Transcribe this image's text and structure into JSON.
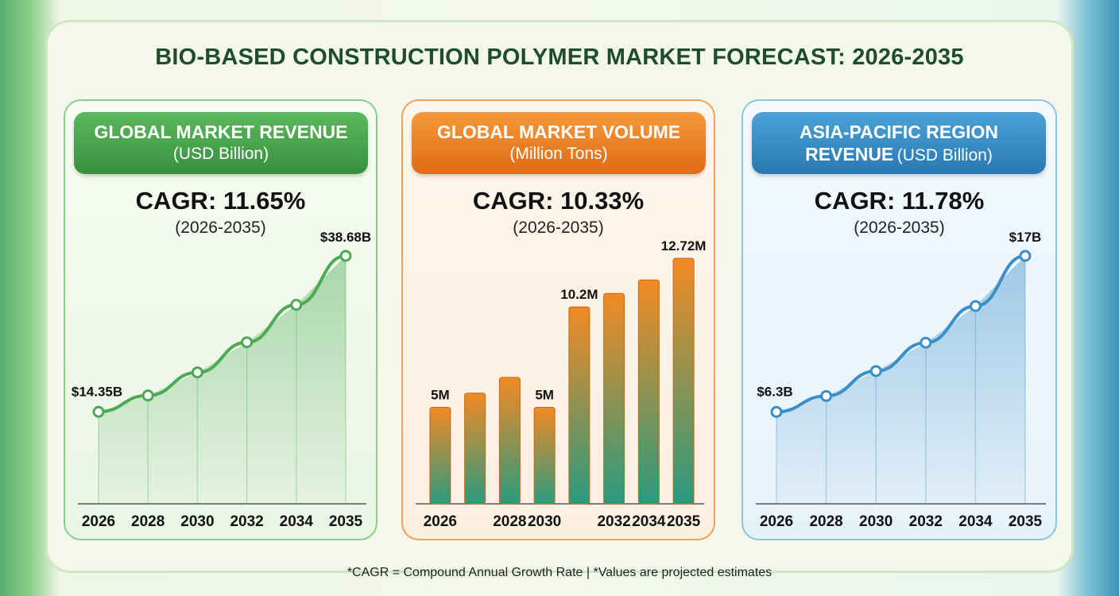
{
  "title": "BIO-BASED CONSTRUCTION POLYMER MARKET FORECAST: 2026-2035",
  "footnote": "*CAGR = Compound Annual Growth Rate | *Values are projected estimates",
  "chart_data": [
    {
      "type": "line",
      "title": "GLOBAL MARKET REVENUE",
      "unit": "(USD Billion)",
      "cagr": "CAGR: 11.65%",
      "period": "(2026-2035)",
      "categories": [
        "2026",
        "2028",
        "2030",
        "2032",
        "2034",
        "2035"
      ],
      "values": [
        14.35,
        16.9,
        20.5,
        25.2,
        31.05,
        38.68
      ],
      "value_labels": [
        "$14.35B",
        null,
        null,
        null,
        null,
        "$38.68B"
      ],
      "color": "#4caa55"
    },
    {
      "type": "bar",
      "title": "GLOBAL MARKET VOLUME",
      "unit": "(Million Tons)",
      "cagr": "CAGR: 10.33%",
      "period": "(2026-2035)",
      "categories": [
        "2026",
        null,
        "2028",
        "2030",
        null,
        "2032",
        "2034",
        "2035"
      ],
      "values": [
        5,
        5.73,
        6.55,
        5,
        10.2,
        10.9,
        11.6,
        12.72
      ],
      "value_labels": [
        "5M",
        null,
        null,
        "5M",
        "10.2M",
        null,
        null,
        "12.72M"
      ],
      "color": "#f28a24"
    },
    {
      "type": "line",
      "title": "ASIA-PACIFIC REGION REVENUE",
      "unit": "(USD Billion)",
      "cagr": "CAGR: 11.78%",
      "period": "(2026-2035)",
      "categories": [
        "2026",
        "2028",
        "2030",
        "2032",
        "2034",
        "2035"
      ],
      "values": [
        6.3,
        7.39,
        9.1,
        11.05,
        13.56,
        17
      ],
      "value_labels": [
        "$6.3B",
        null,
        null,
        null,
        null,
        "$17B"
      ],
      "color": "#3a8fc8"
    }
  ]
}
